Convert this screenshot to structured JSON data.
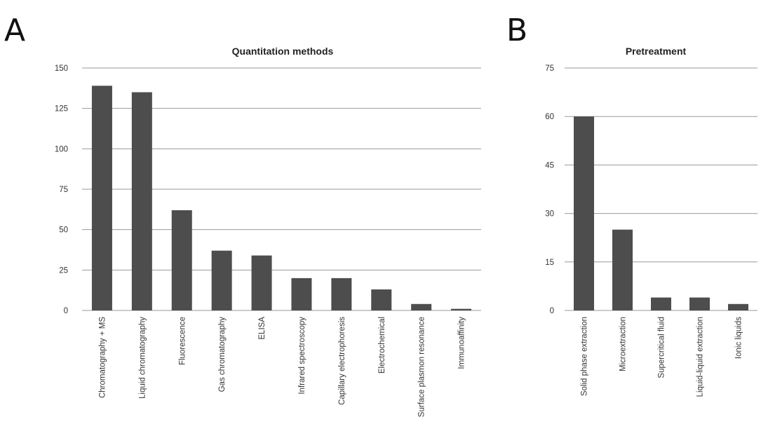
{
  "panels": [
    {
      "letter": "A",
      "chart_data": {
        "type": "bar",
        "title": "Quantitation methods",
        "xlabel": "",
        "ylabel": "",
        "categories": [
          "Chromatography + MS",
          "Liquid chromatography",
          "Fluorescence",
          "Gas chromatography",
          "ELISA",
          "Infrared spectroscopy",
          "Capillary electrophoresis",
          "Electrochemical",
          "Surface plasmon resonance",
          "Immunoaffinity"
        ],
        "values": [
          139,
          135,
          62,
          37,
          34,
          20,
          20,
          13,
          4,
          1
        ],
        "yticks": [
          0,
          25,
          50,
          75,
          100,
          125,
          150
        ],
        "ylim": [
          0,
          150
        ],
        "grid": true,
        "bar_color": "#4d4d4d"
      }
    },
    {
      "letter": "B",
      "chart_data": {
        "type": "bar",
        "title": "Pretreatment",
        "xlabel": "",
        "ylabel": "",
        "categories": [
          "Solid phase extraction",
          "Microextraction",
          "Supercritical fluid",
          "Liquid-liquid extraction",
          "Ionic liquids"
        ],
        "values": [
          60,
          25,
          4,
          4,
          2
        ],
        "yticks": [
          0,
          15,
          30,
          45,
          60,
          75
        ],
        "ylim": [
          0,
          75
        ],
        "grid": true,
        "bar_color": "#4d4d4d"
      }
    }
  ]
}
